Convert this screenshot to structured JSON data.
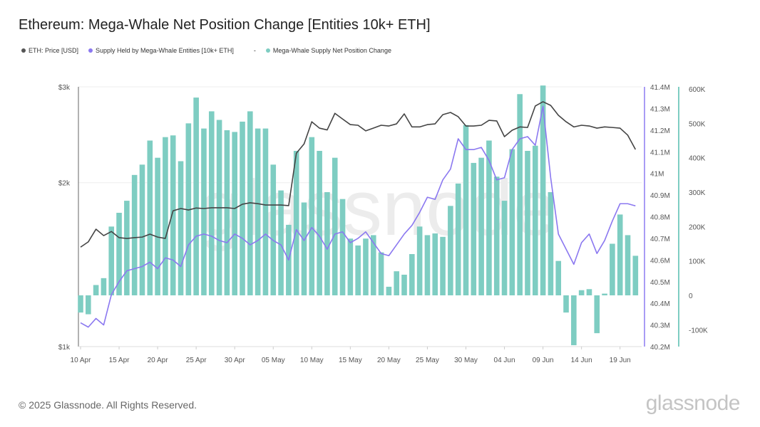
{
  "title": "Ethereum: Mega-Whale Net Position Change [Entities 10k+ ETH]",
  "legend": [
    {
      "label": "ETH: Price [USD]",
      "color": "#555555"
    },
    {
      "label": "Supply Held by Mega-Whale Entities [10k+ ETH]",
      "color": "#8b78f0"
    },
    {
      "label": "-",
      "color": ""
    },
    {
      "label": "Mega-Whale Supply Net Position Change",
      "color": "#7ecdc2"
    }
  ],
  "footer": "© 2025 Glassnode. All Rights Reserved.",
  "logo": "glassnode",
  "watermark": "glassnode",
  "chart_data": {
    "type": "bar+line",
    "x_start": "2025-04-10",
    "x_ticks": [
      "10 Apr",
      "15 Apr",
      "20 Apr",
      "25 Apr",
      "30 Apr",
      "05 May",
      "10 May",
      "15 May",
      "20 May",
      "25 May",
      "30 May",
      "04 Jun",
      "09 Jun",
      "14 Jun",
      "19 Jun"
    ],
    "price_axis": {
      "scale": "log",
      "range": [
        1000,
        3000
      ],
      "ticks": [
        "$3k",
        "$2k",
        "$1k"
      ],
      "tick_values": [
        3000,
        2000,
        1000
      ]
    },
    "supply_axis": {
      "range": [
        40.2,
        41.4
      ],
      "ticks": [
        "41.4M",
        "41.3M",
        "41.2M",
        "41.1M",
        "41M",
        "40.9M",
        "40.8M",
        "40.7M",
        "40.6M",
        "40.5M",
        "40.4M",
        "40.3M",
        "40.2M"
      ],
      "tick_values": [
        41.4,
        41.3,
        41.2,
        41.1,
        41.0,
        40.9,
        40.8,
        40.7,
        40.6,
        40.5,
        40.4,
        40.3,
        40.2
      ]
    },
    "change_axis": {
      "range": [
        -150,
        600
      ],
      "ticks": [
        "600K",
        "500K",
        "400K",
        "300K",
        "200K",
        "100K",
        "0",
        "-100K"
      ],
      "tick_values": [
        600,
        500,
        400,
        300,
        200,
        100,
        0,
        -100
      ]
    },
    "series": [
      {
        "name": "Mega-Whale Supply Net Position Change",
        "unit": "K ETH",
        "type": "bar",
        "values": [
          -50,
          -55,
          30,
          50,
          200,
          240,
          275,
          350,
          380,
          450,
          400,
          460,
          465,
          390,
          500,
          575,
          485,
          535,
          510,
          480,
          475,
          505,
          535,
          485,
          485,
          380,
          305,
          205,
          420,
          270,
          460,
          420,
          300,
          400,
          280,
          165,
          145,
          165,
          175,
          125,
          25,
          70,
          60,
          120,
          200,
          175,
          180,
          170,
          260,
          325,
          495,
          385,
          400,
          450,
          345,
          275,
          425,
          585,
          420,
          435,
          610,
          300,
          100,
          -50,
          -145,
          15,
          18,
          -110,
          5,
          150,
          235,
          175,
          115
        ]
      },
      {
        "name": "Supply Held by Mega-Whale Entities [10k+ ETH]",
        "unit": "M ETH",
        "type": "line",
        "values": [
          40.31,
          40.29,
          40.33,
          40.3,
          40.44,
          40.5,
          40.55,
          40.56,
          40.57,
          40.59,
          40.56,
          40.61,
          40.6,
          40.57,
          40.67,
          40.71,
          40.72,
          40.71,
          40.69,
          40.68,
          40.72,
          40.7,
          40.67,
          40.69,
          40.72,
          40.69,
          40.67,
          40.6,
          40.74,
          40.69,
          40.75,
          40.71,
          40.65,
          40.72,
          40.73,
          40.68,
          40.7,
          40.73,
          40.68,
          40.63,
          40.62,
          40.67,
          40.72,
          40.76,
          40.82,
          40.89,
          40.88,
          40.97,
          41.02,
          41.16,
          41.11,
          41.11,
          41.12,
          41.06,
          40.97,
          40.98,
          41.11,
          41.16,
          41.17,
          41.13,
          41.31,
          40.98,
          40.72,
          40.65,
          40.58,
          40.68,
          40.72,
          40.63,
          40.69,
          40.78,
          40.86,
          40.86,
          40.85
        ]
      },
      {
        "name": "ETH: Price [USD]",
        "unit": "USD",
        "type": "line",
        "values": [
          1523,
          1557,
          1643,
          1599,
          1627,
          1585,
          1580,
          1585,
          1589,
          1609,
          1589,
          1580,
          1776,
          1793,
          1782,
          1797,
          1793,
          1799,
          1799,
          1799,
          1793,
          1826,
          1837,
          1830,
          1820,
          1820,
          1820,
          1815,
          2266,
          2356,
          2588,
          2519,
          2500,
          2682,
          2618,
          2557,
          2550,
          2490,
          2519,
          2550,
          2542,
          2565,
          2676,
          2532,
          2532,
          2557,
          2565,
          2667,
          2692,
          2644,
          2542,
          2542,
          2550,
          2604,
          2597,
          2430,
          2497,
          2532,
          2526,
          2766,
          2817,
          2773,
          2660,
          2588,
          2532,
          2550,
          2542,
          2519,
          2532,
          2526,
          2519,
          2445,
          2302
        ]
      }
    ],
    "colors": {
      "price": "#444444",
      "supply": "#8b78f0",
      "bars": "#7ecdc2"
    }
  }
}
